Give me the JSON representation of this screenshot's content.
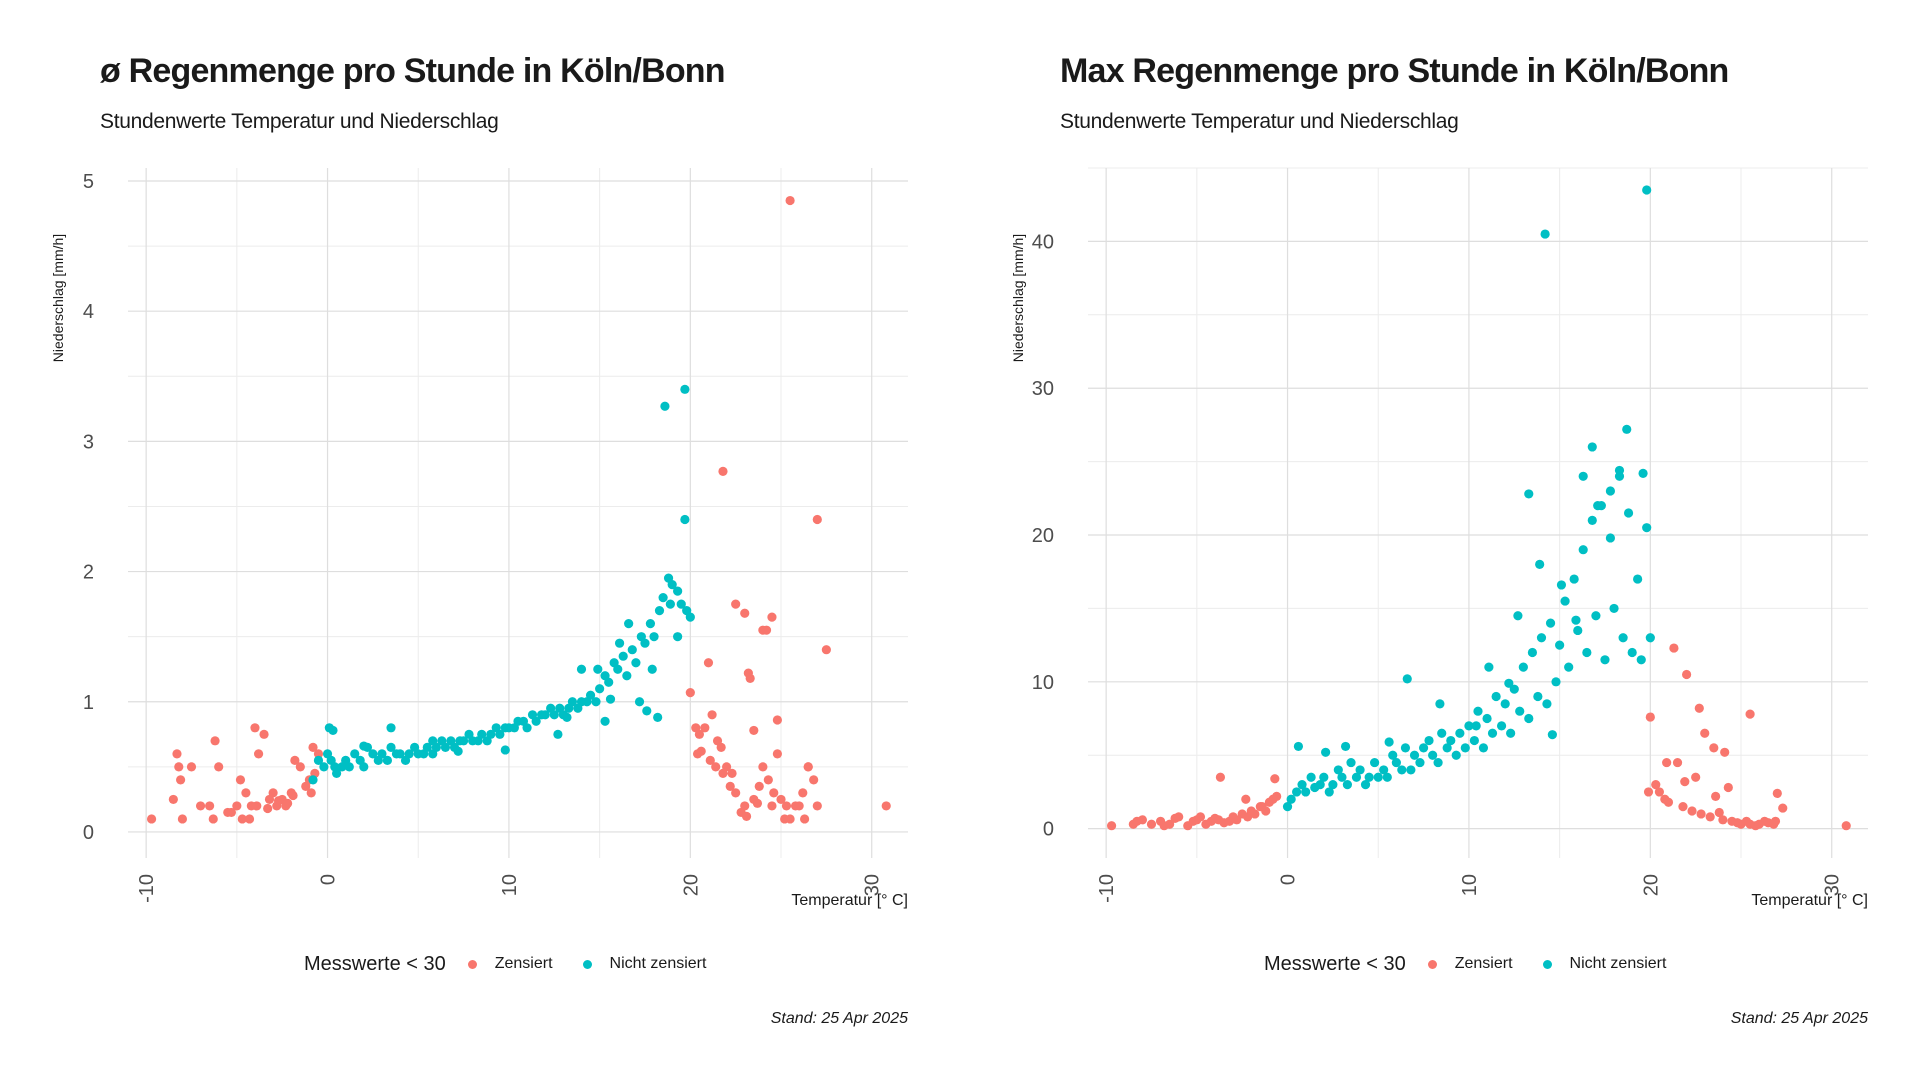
{
  "colors": {
    "zensiert": "#F8766D",
    "nicht_zensiert": "#00BFC4",
    "grid_major": "#dedede",
    "grid_minor": "#ececec"
  },
  "chart_data": [
    {
      "type": "scatter",
      "title": "ø Regenmenge pro Stunde in Köln/Bonn",
      "subtitle": "Stundenwerte Temperatur und Niederschlag",
      "xlabel": "Temperatur [° C]",
      "ylabel": "Niederschlag [mm/h]",
      "caption": "Stand: 25 Apr 2025",
      "legend": {
        "title": "Messwerte < 30",
        "position": "bottom",
        "entries": [
          "Zensiert",
          "Nicht zensiert"
        ]
      },
      "xlim": [
        -11,
        32
      ],
      "ylim": [
        -0.2,
        5.1
      ],
      "xticks": [
        -10,
        0,
        10,
        20,
        30
      ],
      "yticks": [
        0,
        1,
        2,
        3,
        4,
        5
      ],
      "grid": true,
      "series": [
        {
          "name": "Zensiert",
          "x": [
            -9.7,
            -8.5,
            -8.2,
            -8.3,
            -8.0,
            -8.1,
            -7.5,
            -7.0,
            -6.5,
            -6.3,
            -6.2,
            -6.0,
            -5.5,
            -5.0,
            -4.8,
            -4.5,
            -4.2,
            -4.0,
            -3.8,
            -3.5,
            -3.2,
            -3.0,
            -2.8,
            -2.5,
            -2.3,
            -2.0,
            -1.8,
            -1.5,
            -1.2,
            -1.0,
            -0.8,
            -0.5,
            -0.7,
            -0.9,
            -4.7,
            -4.3,
            -3.9,
            -2.2,
            -1.9,
            -5.3,
            -3.3,
            -2.7,
            21.8,
            25.5,
            27.0,
            27.5,
            30.8,
            23.5,
            24.0,
            24.2,
            24.5,
            22.5,
            23.0,
            23.2,
            24.8,
            26.5,
            26.8,
            27.0,
            20.0,
            20.3,
            20.5,
            20.8,
            21.0,
            21.2,
            21.5,
            21.8,
            22.0,
            22.2,
            22.5,
            22.8,
            23.0,
            23.3,
            23.5,
            23.8,
            24.0,
            24.3,
            24.5,
            24.8,
            25.0,
            25.2,
            25.5,
            25.8,
            26.0,
            26.2,
            26.5,
            20.4,
            20.6,
            21.1,
            21.4,
            21.7,
            22.3,
            23.1,
            23.7,
            24.6,
            25.3,
            26.3
          ],
          "y": [
            0.1,
            0.25,
            0.5,
            0.6,
            0.1,
            0.4,
            0.5,
            0.2,
            0.2,
            0.1,
            0.7,
            0.5,
            0.15,
            0.2,
            0.4,
            0.3,
            0.2,
            0.8,
            0.6,
            0.75,
            0.25,
            0.3,
            0.2,
            0.25,
            0.2,
            0.3,
            0.55,
            0.5,
            0.35,
            0.4,
            0.65,
            0.6,
            0.45,
            0.3,
            0.1,
            0.1,
            0.2,
            0.22,
            0.28,
            0.15,
            0.18,
            0.24,
            2.77,
            4.85,
            2.4,
            1.4,
            0.2,
            0.78,
            1.55,
            1.55,
            1.65,
            1.75,
            1.68,
            1.22,
            0.86,
            0.5,
            0.4,
            0.2,
            1.07,
            0.8,
            0.75,
            0.8,
            1.3,
            0.9,
            0.7,
            0.45,
            0.5,
            0.35,
            0.3,
            0.15,
            0.2,
            1.18,
            0.25,
            0.35,
            0.5,
            0.4,
            0.2,
            0.6,
            0.25,
            0.1,
            0.1,
            0.2,
            0.2,
            0.3,
            0.5,
            0.6,
            0.62,
            0.55,
            0.5,
            0.65,
            0.45,
            0.12,
            0.22,
            0.3,
            0.2,
            0.1
          ]
        },
        {
          "name": "Nicht zensiert",
          "x": [
            -0.8,
            -0.5,
            -0.2,
            0.0,
            0.2,
            0.4,
            0.5,
            0.8,
            1.0,
            1.2,
            1.5,
            1.8,
            2.0,
            2.2,
            2.5,
            2.8,
            3.0,
            3.3,
            3.5,
            3.8,
            4.0,
            4.3,
            4.5,
            4.8,
            5.0,
            5.3,
            5.5,
            5.8,
            6.0,
            6.3,
            6.5,
            6.8,
            7.0,
            7.3,
            7.5,
            7.8,
            8.0,
            8.3,
            8.5,
            8.8,
            9.0,
            9.3,
            9.5,
            9.8,
            10.0,
            10.3,
            10.5,
            10.8,
            11.0,
            11.3,
            11.5,
            11.8,
            12.0,
            12.3,
            12.5,
            12.8,
            13.0,
            13.3,
            13.5,
            13.8,
            14.0,
            14.3,
            14.5,
            14.8,
            15.0,
            15.3,
            15.5,
            15.8,
            16.0,
            16.3,
            16.5,
            16.8,
            17.0,
            17.3,
            17.5,
            17.8,
            18.0,
            18.3,
            18.5,
            18.8,
            19.0,
            19.3,
            19.5,
            19.8,
            20.0,
            18.6,
            19.7,
            19.7,
            0.1,
            0.3,
            2.0,
            3.5,
            5.8,
            7.2,
            9.8,
            12.7,
            13.2,
            14.0,
            15.3,
            16.6,
            17.2,
            17.6,
            18.2,
            18.9,
            19.3,
            16.1,
            17.9,
            15.6,
            14.9
          ],
          "y": [
            0.4,
            0.55,
            0.5,
            0.6,
            0.55,
            0.5,
            0.45,
            0.5,
            0.55,
            0.5,
            0.6,
            0.55,
            0.5,
            0.65,
            0.6,
            0.55,
            0.6,
            0.55,
            0.65,
            0.6,
            0.6,
            0.55,
            0.6,
            0.65,
            0.6,
            0.6,
            0.65,
            0.6,
            0.65,
            0.7,
            0.65,
            0.7,
            0.65,
            0.7,
            0.7,
            0.75,
            0.7,
            0.7,
            0.75,
            0.7,
            0.75,
            0.8,
            0.75,
            0.8,
            0.8,
            0.8,
            0.85,
            0.85,
            0.8,
            0.9,
            0.85,
            0.9,
            0.9,
            0.95,
            0.9,
            0.95,
            0.9,
            0.95,
            1.0,
            0.95,
            1.0,
            1.0,
            1.05,
            1.0,
            1.1,
            1.2,
            1.15,
            1.3,
            1.25,
            1.35,
            1.2,
            1.4,
            1.3,
            1.5,
            1.45,
            1.6,
            1.5,
            1.7,
            1.8,
            1.95,
            1.9,
            1.85,
            1.75,
            1.7,
            1.65,
            3.27,
            3.4,
            2.4,
            0.8,
            0.78,
            0.66,
            0.8,
            0.7,
            0.62,
            0.63,
            0.75,
            0.88,
            1.25,
            0.85,
            1.6,
            1.0,
            0.93,
            0.88,
            1.75,
            1.5,
            1.45,
            1.25,
            1.02,
            1.25
          ]
        }
      ]
    },
    {
      "type": "scatter",
      "title": "Max Regenmenge pro Stunde in Köln/Bonn",
      "subtitle": "Stundenwerte Temperatur und Niederschlag",
      "xlabel": "Temperatur [° C]",
      "ylabel": "Niederschlag [mm/h]",
      "caption": "Stand: 25 Apr 2025",
      "legend": {
        "title": "Messwerte < 30",
        "position": "bottom",
        "entries": [
          "Zensiert",
          "Nicht zensiert"
        ]
      },
      "xlim": [
        -11,
        32
      ],
      "ylim": [
        -2,
        45
      ],
      "xticks": [
        -10,
        0,
        10,
        20,
        30
      ],
      "yticks": [
        0,
        10,
        20,
        30,
        40
      ],
      "grid": true,
      "series": [
        {
          "name": "Zensiert",
          "x": [
            -9.7,
            -8.5,
            -8.3,
            -8.0,
            -7.5,
            -7.0,
            -6.8,
            -6.5,
            -6.2,
            -6.0,
            -5.5,
            -5.2,
            -5.0,
            -4.8,
            -4.5,
            -4.2,
            -4.0,
            -3.8,
            -3.5,
            -3.2,
            -3.0,
            -2.8,
            -2.5,
            -2.2,
            -2.0,
            -1.8,
            -1.5,
            -1.2,
            -1.0,
            -0.8,
            -0.6,
            -3.7,
            -2.3,
            -1.4,
            -0.7,
            20.0,
            20.3,
            20.5,
            20.8,
            21.0,
            21.3,
            21.5,
            21.8,
            22.0,
            22.3,
            22.5,
            22.8,
            23.0,
            23.3,
            23.5,
            23.8,
            24.0,
            24.3,
            24.5,
            24.8,
            25.0,
            25.3,
            25.5,
            25.8,
            26.0,
            26.3,
            26.5,
            26.8,
            27.0,
            27.3,
            30.8,
            20.9,
            21.9,
            22.7,
            23.6,
            24.1,
            25.5,
            26.9,
            19.9
          ],
          "y": [
            0.2,
            0.3,
            0.5,
            0.6,
            0.3,
            0.5,
            0.2,
            0.3,
            0.7,
            0.8,
            0.2,
            0.5,
            0.6,
            0.8,
            0.3,
            0.5,
            0.7,
            0.6,
            0.4,
            0.5,
            0.8,
            0.6,
            1.0,
            0.8,
            1.2,
            1.0,
            1.5,
            1.2,
            1.8,
            2.0,
            2.2,
            3.5,
            2.0,
            1.5,
            3.4,
            7.6,
            3.0,
            2.5,
            2.0,
            1.8,
            12.3,
            4.5,
            1.5,
            10.5,
            1.2,
            3.5,
            1.0,
            6.5,
            0.8,
            5.5,
            1.1,
            0.6,
            2.8,
            0.5,
            0.4,
            0.3,
            0.5,
            7.8,
            0.2,
            0.3,
            0.5,
            0.4,
            0.3,
            2.4,
            1.4,
            0.2,
            4.5,
            3.2,
            8.2,
            2.2,
            5.2,
            0.3,
            0.5,
            2.5
          ]
        },
        {
          "name": "Nicht zensiert",
          "x": [
            0.0,
            0.2,
            0.5,
            0.8,
            1.0,
            1.3,
            1.5,
            1.8,
            2.0,
            2.3,
            2.5,
            2.8,
            3.0,
            3.3,
            3.5,
            3.8,
            4.0,
            4.3,
            4.5,
            4.8,
            5.0,
            5.3,
            5.5,
            5.8,
            6.0,
            6.3,
            6.5,
            6.8,
            7.0,
            7.3,
            7.5,
            7.8,
            8.0,
            8.3,
            8.5,
            8.8,
            9.0,
            9.3,
            9.5,
            9.8,
            10.0,
            10.3,
            10.5,
            10.8,
            11.0,
            11.3,
            11.5,
            11.8,
            12.0,
            12.3,
            12.5,
            12.8,
            13.0,
            13.3,
            13.5,
            13.8,
            14.0,
            14.3,
            14.5,
            14.8,
            15.0,
            15.3,
            15.5,
            15.8,
            16.0,
            16.3,
            16.5,
            16.8,
            17.0,
            17.3,
            17.5,
            17.8,
            18.0,
            18.3,
            18.5,
            18.8,
            19.0,
            19.3,
            19.5,
            19.8,
            20.0,
            14.2,
            19.8,
            18.7,
            16.8,
            16.3,
            17.1,
            18.3,
            13.9,
            13.3,
            12.7,
            11.1,
            6.6,
            8.4,
            15.1,
            15.9,
            17.8,
            19.6,
            12.2,
            10.4,
            14.6,
            3.2,
            2.1,
            0.6,
            5.6
          ],
          "y": [
            1.5,
            2.0,
            2.5,
            3.0,
            2.5,
            3.5,
            2.8,
            3.0,
            3.5,
            2.5,
            3.0,
            4.0,
            3.5,
            3.0,
            4.5,
            3.5,
            4.0,
            3.0,
            3.5,
            4.5,
            3.5,
            4.0,
            3.5,
            5.0,
            4.5,
            4.0,
            5.5,
            4.0,
            5.0,
            4.5,
            5.5,
            6.0,
            5.0,
            4.5,
            6.5,
            5.5,
            6.0,
            5.0,
            6.5,
            5.5,
            7.0,
            6.0,
            8.0,
            5.5,
            7.5,
            6.5,
            9.0,
            7.0,
            8.5,
            6.5,
            9.5,
            8.0,
            11.0,
            7.5,
            12.0,
            9.0,
            13.0,
            8.5,
            14.0,
            10.0,
            12.5,
            15.5,
            11.0,
            17.0,
            13.5,
            19.0,
            12.0,
            21.0,
            14.5,
            22.0,
            11.5,
            23.0,
            15.0,
            24.0,
            13.0,
            21.5,
            12.0,
            17.0,
            11.5,
            20.5,
            13.0,
            40.5,
            43.5,
            27.2,
            26.0,
            24.0,
            22.0,
            24.4,
            18.0,
            22.8,
            14.5,
            11.0,
            10.2,
            8.5,
            16.6,
            14.2,
            19.8,
            24.2,
            9.9,
            7.0,
            6.4,
            5.6,
            5.2,
            5.6,
            5.9
          ]
        }
      ]
    }
  ]
}
